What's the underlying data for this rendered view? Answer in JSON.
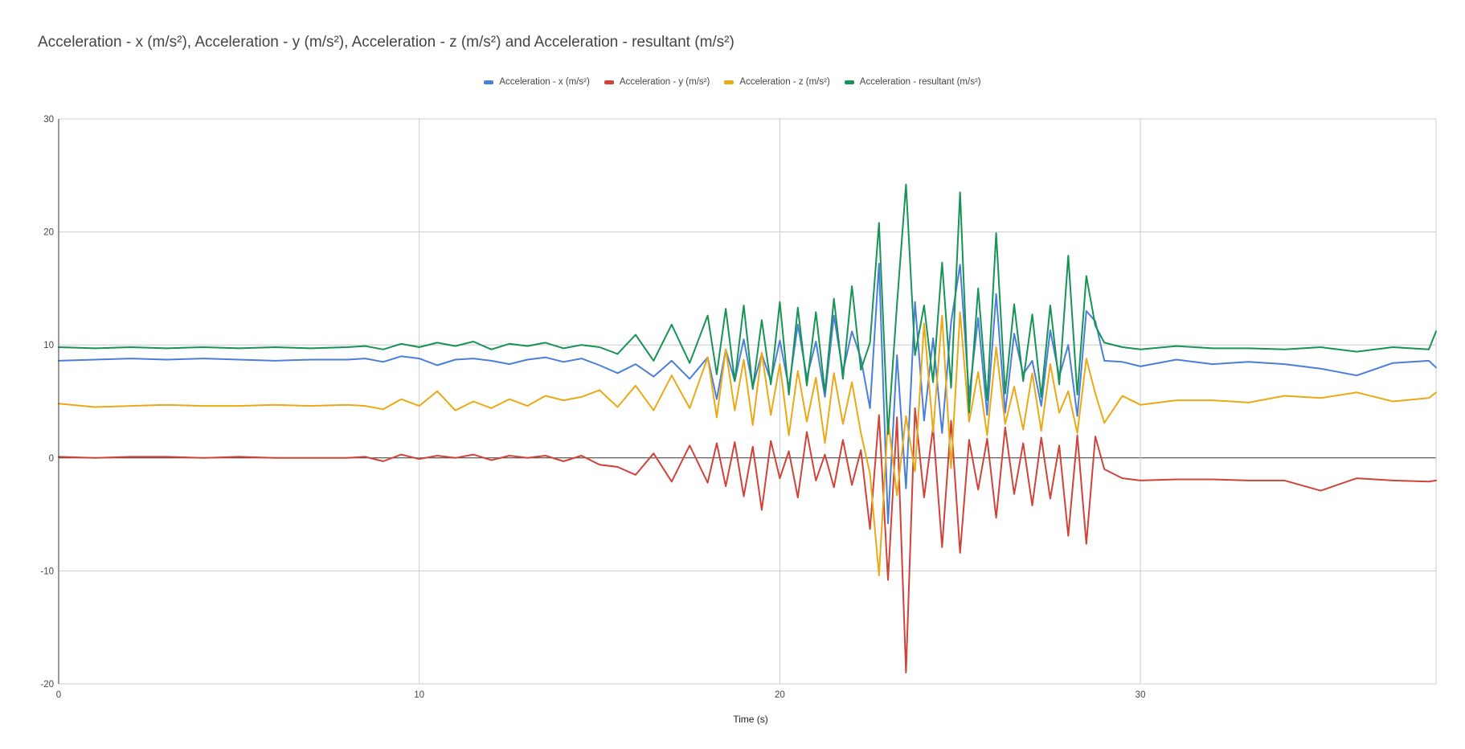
{
  "chart_data": {
    "type": "line",
    "title": "Acceleration - x (m/s²), Acceleration - y (m/s²), Acceleration - z (m/s²) and Acceleration - resultant (m/s²)",
    "xlabel": "Time (s)",
    "ylabel": "",
    "xlim": [
      0,
      38.2
    ],
    "ylim": [
      -20,
      30
    ],
    "x_ticks": [
      0,
      10,
      20,
      30
    ],
    "y_ticks": [
      -20,
      -10,
      0,
      10,
      20,
      30
    ],
    "grid": true,
    "legend_position": "top",
    "x": [
      0,
      1,
      2,
      3,
      4,
      5,
      6,
      7,
      8,
      8.5,
      9,
      9.5,
      10,
      10.5,
      11,
      11.5,
      12,
      12.5,
      13,
      13.5,
      14,
      14.5,
      15,
      15.5,
      16,
      16.5,
      17,
      17.5,
      18,
      18.25,
      18.5,
      18.75,
      19,
      19.25,
      19.5,
      19.75,
      20,
      20.25,
      20.5,
      20.75,
      21,
      21.25,
      21.5,
      21.75,
      22,
      22.25,
      22.5,
      22.75,
      23,
      23.25,
      23.5,
      23.75,
      24,
      24.25,
      24.5,
      24.75,
      25,
      25.25,
      25.5,
      25.75,
      26,
      26.25,
      26.5,
      26.75,
      27,
      27.25,
      27.5,
      27.75,
      28,
      28.25,
      28.5,
      28.75,
      29,
      29.5,
      30,
      31,
      32,
      33,
      34,
      35,
      36,
      37,
      38,
      38.2
    ],
    "series": [
      {
        "name": "Acceleration - x (m/s²)",
        "color": "#4a7ed9",
        "values": [
          8.6,
          8.7,
          8.8,
          8.7,
          8.8,
          8.7,
          8.6,
          8.7,
          8.7,
          8.8,
          8.5,
          9.0,
          8.8,
          8.2,
          8.7,
          8.8,
          8.6,
          8.3,
          8.7,
          8.9,
          8.5,
          8.8,
          8.2,
          7.5,
          8.3,
          7.2,
          8.6,
          7.0,
          8.9,
          5.2,
          9.6,
          6.8,
          10.5,
          6.3,
          9.2,
          6.8,
          10.4,
          6.2,
          11.8,
          7.1,
          10.3,
          5.4,
          12.6,
          7.6,
          11.2,
          8.8,
          4.4,
          17.2,
          -5.8,
          9.1,
          -2.7,
          13.8,
          3.3,
          10.6,
          2.2,
          12.0,
          17.1,
          5.5,
          12.4,
          3.8,
          14.5,
          4.0,
          11.0,
          7.4,
          8.6,
          4.6,
          11.3,
          7.2,
          10.0,
          3.7,
          13.0,
          12.1,
          8.6,
          8.5,
          8.1,
          8.7,
          8.3,
          8.5,
          8.3,
          7.9,
          7.3,
          8.4,
          8.6,
          8.0
        ]
      },
      {
        "name": "Acceleration - y (m/s²)",
        "color": "#d0433a",
        "values": [
          0.1,
          0.0,
          0.1,
          0.1,
          0.0,
          0.1,
          0.0,
          0.0,
          0.0,
          0.1,
          -0.3,
          0.3,
          -0.1,
          0.2,
          0.0,
          0.3,
          -0.2,
          0.2,
          0.0,
          0.2,
          -0.3,
          0.2,
          -0.6,
          -0.8,
          -1.5,
          0.4,
          -2.1,
          1.1,
          -2.2,
          1.3,
          -2.5,
          1.4,
          -3.4,
          1.0,
          -4.6,
          1.5,
          -1.8,
          0.6,
          -3.5,
          2.3,
          -2.0,
          0.3,
          -2.6,
          1.6,
          -2.4,
          0.7,
          -6.3,
          3.8,
          -10.8,
          3.6,
          -19.0,
          4.4,
          -3.5,
          2.7,
          -7.9,
          3.3,
          -8.4,
          1.6,
          -2.8,
          1.7,
          -5.3,
          2.7,
          -3.2,
          1.3,
          -4.2,
          1.8,
          -3.6,
          1.1,
          -6.9,
          2.0,
          -7.6,
          1.9,
          -1.0,
          -1.8,
          -2.0,
          -1.9,
          -1.9,
          -2.0,
          -2.0,
          -2.9,
          -1.8,
          -2.0,
          -2.1,
          -2.0
        ]
      },
      {
        "name": "Acceleration - z (m/s²)",
        "color": "#eaa915",
        "values": [
          4.8,
          4.5,
          4.6,
          4.7,
          4.6,
          4.6,
          4.7,
          4.6,
          4.7,
          4.6,
          4.3,
          5.2,
          4.6,
          5.9,
          4.2,
          5.0,
          4.4,
          5.2,
          4.6,
          5.5,
          5.1,
          5.4,
          6.0,
          4.5,
          6.4,
          4.2,
          7.3,
          4.4,
          8.9,
          3.6,
          9.6,
          4.2,
          8.7,
          2.9,
          9.3,
          3.8,
          8.3,
          2.0,
          7.7,
          3.2,
          7.1,
          1.3,
          7.5,
          3.0,
          6.7,
          2.2,
          -1.4,
          -10.4,
          3.4,
          -3.3,
          3.7,
          -1.2,
          11.9,
          2.3,
          12.6,
          -0.9,
          12.9,
          3.2,
          7.6,
          2.0,
          9.8,
          3.0,
          6.3,
          2.5,
          7.5,
          2.4,
          8.3,
          4.0,
          5.9,
          2.2,
          8.8,
          5.7,
          3.1,
          5.5,
          4.7,
          5.1,
          5.1,
          4.9,
          5.5,
          5.3,
          5.8,
          5.0,
          5.3,
          5.8
        ]
      },
      {
        "name": "Acceleration - resultant (m/s²)",
        "color": "#169355",
        "values": [
          9.8,
          9.7,
          9.8,
          9.7,
          9.8,
          9.7,
          9.8,
          9.7,
          9.8,
          9.9,
          9.6,
          10.1,
          9.8,
          10.2,
          9.9,
          10.3,
          9.6,
          10.1,
          9.9,
          10.2,
          9.7,
          10.0,
          9.8,
          9.2,
          10.9,
          8.6,
          11.8,
          8.4,
          12.6,
          7.4,
          13.2,
          6.8,
          13.5,
          6.1,
          12.2,
          6.5,
          13.8,
          5.6,
          13.3,
          6.4,
          12.9,
          5.8,
          14.1,
          7.0,
          15.2,
          7.8,
          10.2,
          20.8,
          2.1,
          13.6,
          24.2,
          9.1,
          13.5,
          6.7,
          17.3,
          6.2,
          23.5,
          4.0,
          15.0,
          5.1,
          19.9,
          5.7,
          13.6,
          6.8,
          12.7,
          5.4,
          13.5,
          6.5,
          17.9,
          5.6,
          16.1,
          11.7,
          10.2,
          9.8,
          9.6,
          9.9,
          9.7,
          9.7,
          9.6,
          9.8,
          9.4,
          9.8,
          9.6,
          11.2
        ]
      }
    ]
  }
}
